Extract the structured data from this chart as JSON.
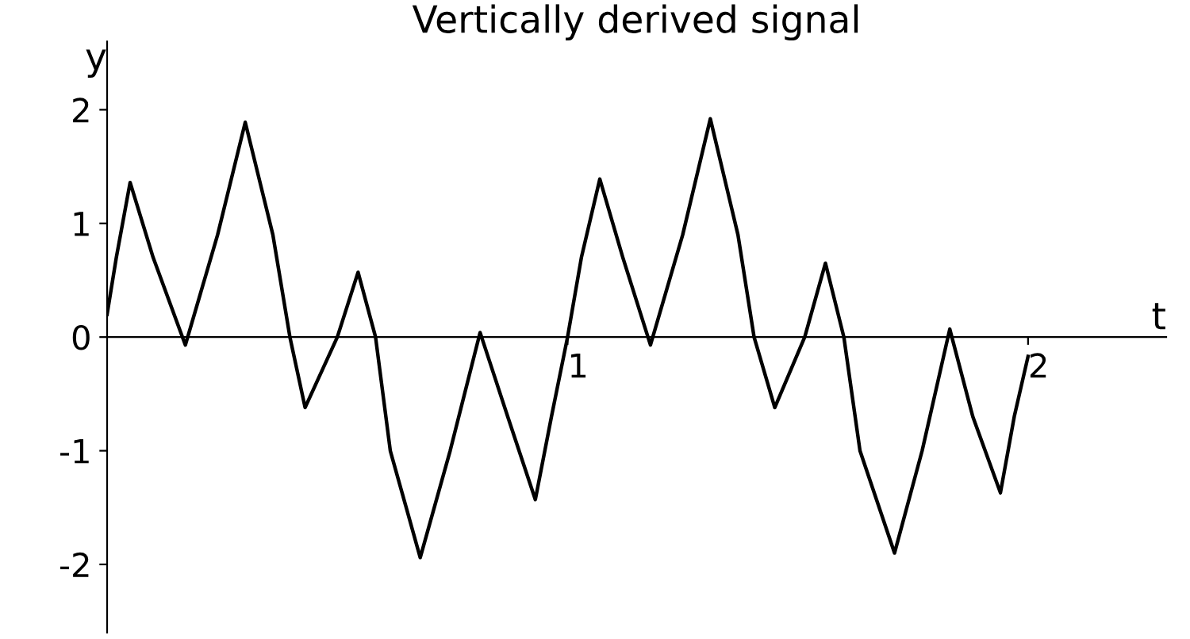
{
  "chart_data": {
    "type": "line",
    "title": "Vertically derived signal",
    "xlabel": "t",
    "ylabel": "y",
    "x": [
      0,
      0.02,
      0.05,
      0.1,
      0.17,
      0.24,
      0.3,
      0.36,
      0.397,
      0.43,
      0.5,
      0.545,
      0.583,
      0.615,
      0.68,
      0.745,
      0.81,
      0.87,
      0.93,
      0.965,
      1.0,
      1.03,
      1.07,
      1.12,
      1.18,
      1.25,
      1.31,
      1.37,
      1.405,
      1.45,
      1.515,
      1.56,
      1.6,
      1.635,
      1.71,
      1.77,
      1.83,
      1.88,
      1.94,
      1.97,
      2.0
    ],
    "series": [
      {
        "color": "#000000",
        "values": [
          0.2,
          0.7,
          1.36,
          0.7,
          -0.07,
          0.9,
          1.89,
          0.9,
          0,
          -0.62,
          0,
          0.57,
          0,
          -1.0,
          -1.94,
          -1.0,
          0.04,
          -0.7,
          -1.43,
          -0.7,
          0,
          0.7,
          1.39,
          0.7,
          -0.07,
          0.9,
          1.92,
          0.9,
          0,
          -0.62,
          0,
          0.65,
          0,
          -1.0,
          -1.9,
          -1.0,
          0.07,
          -0.7,
          -1.37,
          -0.7,
          -0.17
        ]
      }
    ],
    "xlim": [
      0,
      2.3
    ],
    "ylim": [
      -2.6,
      2.6
    ],
    "xticks": [
      1,
      2
    ],
    "yticks": [
      -2,
      -1,
      0,
      1,
      2
    ],
    "grid": false,
    "legend": false,
    "marker": "none",
    "line_style": "solid"
  }
}
